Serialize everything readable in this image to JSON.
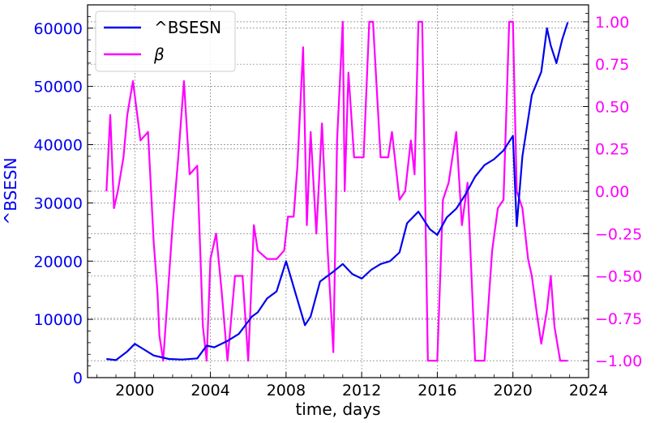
{
  "colors": {
    "left_series": "#0000ee",
    "right_series": "#ff00ff",
    "grid": "#808080",
    "frame": "#000000"
  },
  "chart_data": {
    "type": "line",
    "xlabel": "time, days",
    "ylabel_left": "^BSESN",
    "ylabel_right": "",
    "xlim": [
      1997.5,
      2024
    ],
    "ylim_left": [
      0,
      64000
    ],
    "ylim_right": [
      -1.1,
      1.1
    ],
    "x_ticks": [
      "2000",
      "2004",
      "2008",
      "2012",
      "2016",
      "2020",
      "2024"
    ],
    "y_left_ticks": [
      "0",
      "10000",
      "20000",
      "30000",
      "40000",
      "50000",
      "60000"
    ],
    "y_right_ticks": [
      "−1.00",
      "−0.75",
      "−0.50",
      "−0.25",
      "0.00",
      "0.25",
      "0.50",
      "0.75",
      "1.00"
    ],
    "grid": true,
    "legend_position": "top-left",
    "series": [
      {
        "name": "^BSESN",
        "axis": "left",
        "color": "#0000ee",
        "x": [
          1998.5,
          1999.0,
          1999.6,
          2000.0,
          2000.5,
          2001.0,
          2001.8,
          2002.5,
          2003.3,
          2003.8,
          2004.2,
          2004.9,
          2005.5,
          2006.2,
          2006.5,
          2007.0,
          2007.5,
          2008.0,
          2008.5,
          2009.0,
          2009.3,
          2009.8,
          2010.5,
          2011.0,
          2011.5,
          2012.0,
          2012.5,
          2013.0,
          2013.5,
          2014.0,
          2014.4,
          2015.0,
          2015.2,
          2015.6,
          2016.0,
          2016.5,
          2017.0,
          2017.5,
          2018.0,
          2018.5,
          2019.0,
          2019.5,
          2020.0,
          2020.2,
          2020.5,
          2021.0,
          2021.5,
          2021.8,
          2022.0,
          2022.3,
          2022.6,
          2022.9
        ],
        "values": [
          3200,
          3000,
          4500,
          5800,
          4800,
          3800,
          3200,
          3100,
          3300,
          5500,
          5200,
          6300,
          7500,
          10500,
          11200,
          13600,
          14800,
          20000,
          14500,
          9000,
          10500,
          16500,
          18200,
          19500,
          17800,
          17000,
          18500,
          19500,
          20000,
          21500,
          26500,
          28500,
          27500,
          25500,
          24500,
          27500,
          29000,
          31500,
          34500,
          36500,
          37500,
          39000,
          41500,
          26000,
          38000,
          48500,
          52500,
          60000,
          57000,
          54000,
          58000,
          61000
        ]
      },
      {
        "name": "β",
        "axis": "right",
        "color": "#ff00ff",
        "x": [
          1998.5,
          1998.7,
          1998.9,
          1999.1,
          1999.4,
          1999.6,
          1999.9,
          2000.3,
          2000.7,
          2001.0,
          2001.2,
          2001.3,
          2001.5,
          2002.0,
          2002.3,
          2002.6,
          2002.9,
          2003.3,
          2003.6,
          2003.8,
          2004.0,
          2004.3,
          2004.6,
          2004.9,
          2005.3,
          2005.7,
          2006.0,
          2006.3,
          2006.5,
          2007.0,
          2007.5,
          2007.9,
          2008.1,
          2008.4,
          2008.6,
          2008.9,
          2009.1,
          2009.3,
          2009.6,
          2009.9,
          2010.2,
          2010.5,
          2010.7,
          2011.0,
          2011.1,
          2011.3,
          2011.6,
          2011.9,
          2012.1,
          2012.4,
          2012.6,
          2013.0,
          2013.4,
          2013.6,
          2014.0,
          2014.3,
          2014.6,
          2014.8,
          2015.0,
          2015.2,
          2015.5,
          2015.8,
          2016.0,
          2016.3,
          2016.6,
          2017.0,
          2017.3,
          2017.6,
          2018.0,
          2018.2,
          2018.5,
          2018.9,
          2019.2,
          2019.5,
          2019.8,
          2020.0,
          2020.2,
          2020.5,
          2020.8,
          2021.0,
          2021.3,
          2021.5,
          2021.8,
          2022.0,
          2022.2,
          2022.5,
          2022.9
        ],
        "values": [
          0.0,
          0.45,
          -0.1,
          0.0,
          0.2,
          0.45,
          0.65,
          0.3,
          0.35,
          -0.3,
          -0.6,
          -0.85,
          -1.0,
          -0.2,
          0.2,
          0.65,
          0.1,
          0.15,
          -0.8,
          -1.0,
          -0.4,
          -0.25,
          -0.6,
          -1.0,
          -0.5,
          -0.5,
          -1.0,
          -0.2,
          -0.35,
          -0.4,
          -0.4,
          -0.35,
          -0.15,
          -0.15,
          0.15,
          0.85,
          -0.2,
          0.35,
          -0.25,
          0.4,
          -0.35,
          -0.95,
          0.3,
          1.0,
          0.0,
          0.7,
          0.2,
          0.2,
          0.2,
          1.0,
          1.0,
          0.2,
          0.2,
          0.35,
          -0.05,
          0.0,
          0.3,
          0.1,
          1.0,
          1.0,
          -1.0,
          -1.0,
          -1.0,
          -0.05,
          0.05,
          0.35,
          -0.2,
          0.05,
          -1.0,
          -1.0,
          -1.0,
          -0.35,
          -0.1,
          -0.05,
          1.0,
          1.0,
          0.0,
          -0.1,
          -0.4,
          -0.5,
          -0.75,
          -0.9,
          -0.7,
          -0.5,
          -0.8,
          -1.0,
          -1.0
        ]
      }
    ]
  }
}
